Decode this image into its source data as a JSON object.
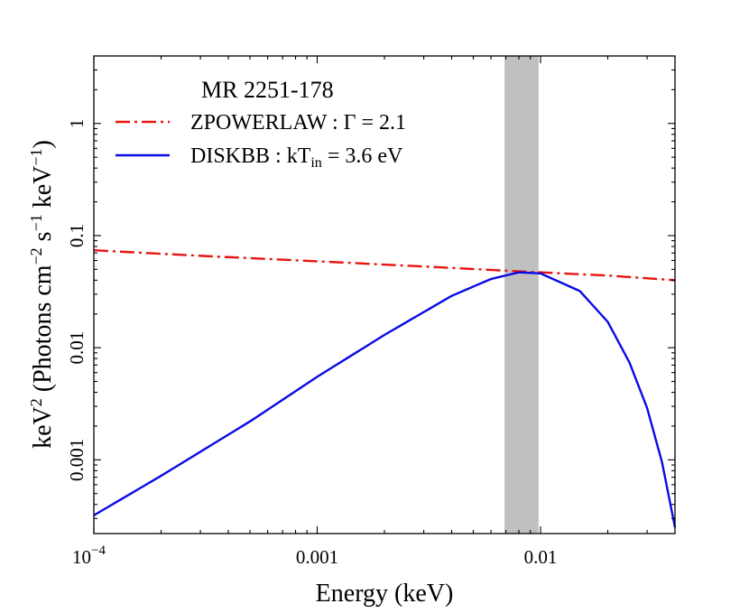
{
  "chart_data": {
    "type": "line",
    "title": "MR 2251-178",
    "xlabel": "Energy (keV)",
    "ylabel": "keV² (Photons cm⁻² s⁻¹ keV⁻¹)",
    "xscale": "log",
    "yscale": "log",
    "xlim": [
      0.0001,
      0.04
    ],
    "ylim": [
      0.00022,
      4.0
    ],
    "x_ticks": [
      {
        "value": 0.0001,
        "base": "10",
        "exp": "−4"
      },
      {
        "value": 0.001,
        "label": "0.001"
      },
      {
        "value": 0.01,
        "label": "0.01"
      }
    ],
    "y_ticks": [
      {
        "value": 0.001,
        "label": "0.001"
      },
      {
        "value": 0.01,
        "label": "0.01"
      },
      {
        "value": 0.1,
        "label": "0.1"
      },
      {
        "value": 1,
        "label": "1"
      }
    ],
    "shaded_band": {
      "x": [
        0.0069,
        0.0098
      ],
      "color": "#c0c0c0"
    },
    "series": [
      {
        "name": "ZPOWERLAW",
        "legend_label": "ZPOWERLAW : Γ = 2.1",
        "legend_text": "ZPOWERLAW : Γ = 2.1",
        "style": "dashdot",
        "color": "#e8140f",
        "x": [
          0.0001,
          0.0003,
          0.001,
          0.003,
          0.008,
          0.02,
          0.04
        ],
        "y": [
          0.074,
          0.066,
          0.059,
          0.053,
          0.048,
          0.044,
          0.04
        ]
      },
      {
        "name": "DISKBB",
        "legend_label": "DISKBB : kT_in = 3.6 eV",
        "legend_text": "DISKBB : kT",
        "legend_subscript": "in",
        "legend_suffix": " = 3.6 eV",
        "style": "solid",
        "color": "#0a0ae6",
        "x": [
          0.0001,
          0.0002,
          0.0005,
          0.001,
          0.002,
          0.004,
          0.006,
          0.008,
          0.01,
          0.015,
          0.02,
          0.025,
          0.03,
          0.035,
          0.04
        ],
        "y": [
          0.00032,
          0.00072,
          0.0022,
          0.0055,
          0.013,
          0.029,
          0.041,
          0.047,
          0.046,
          0.032,
          0.017,
          0.0074,
          0.0029,
          0.00095,
          0.00025
        ]
      }
    ]
  }
}
